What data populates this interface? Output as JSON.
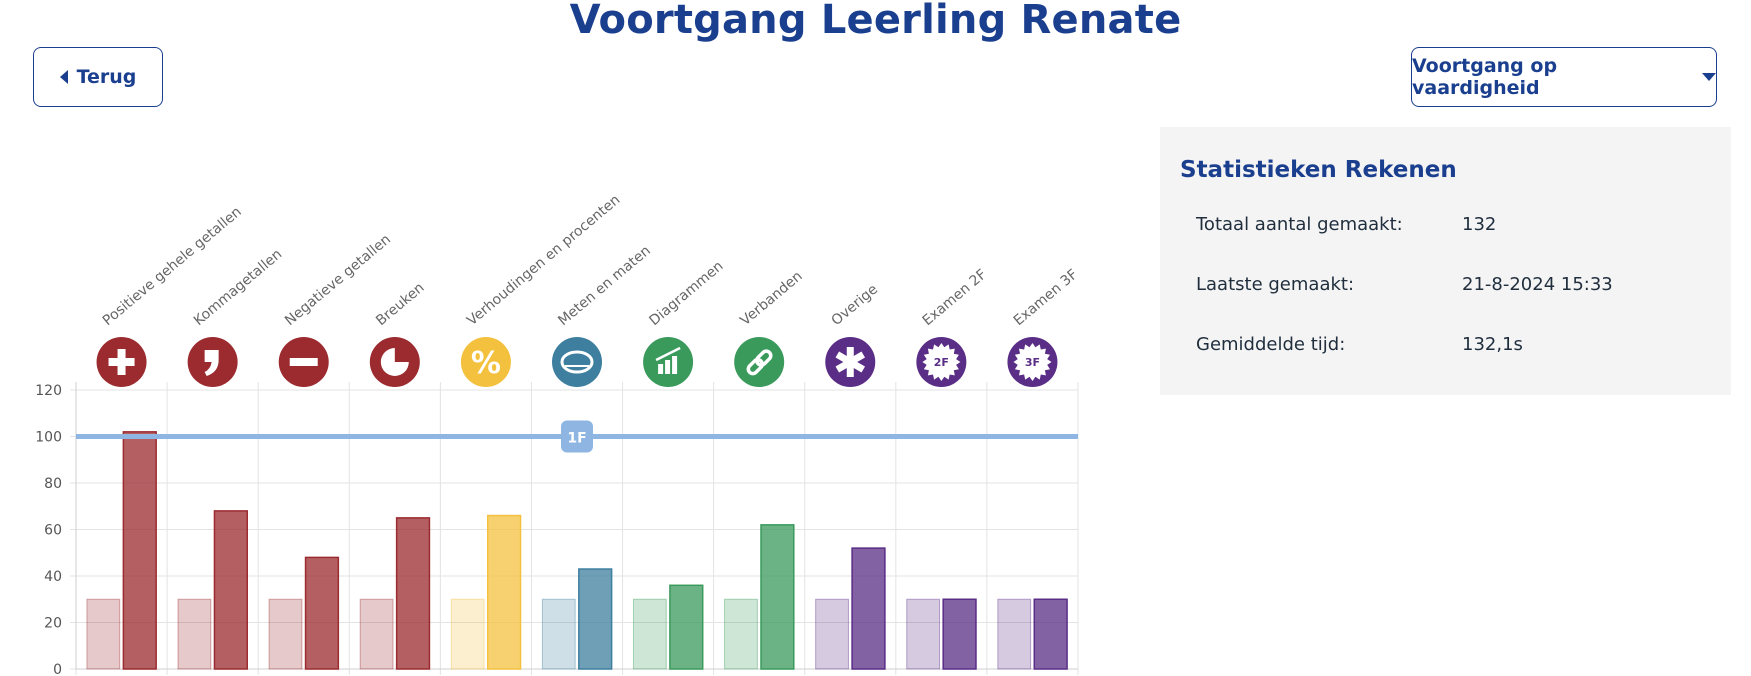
{
  "page": {
    "title": "Voortgang Leerling Renate",
    "back_label": "Terug",
    "view_select_label": "Voortgang op vaardigheid"
  },
  "stats": {
    "title": "Statistieken Rekenen",
    "rows": [
      {
        "label": "Totaal aantal gemaakt:",
        "value": "132"
      },
      {
        "label": "Laatste gemaakt:",
        "value": "21-8-2024 15:33"
      },
      {
        "label": "Gemiddelde tijd:",
        "value": "132,1s"
      }
    ]
  },
  "chart_data": {
    "type": "bar",
    "categories": [
      "Positieve gehele getallen",
      "Kommagetallen",
      "Negatieve getallen",
      "Breuken",
      "Verhoudingen en procenten",
      "Meten en maten",
      "Diagrammen",
      "Verbanden",
      "Overige",
      "Examen 2F",
      "Examen 3F"
    ],
    "series": [
      {
        "values": [
          30,
          30,
          30,
          30,
          30,
          30,
          30,
          30,
          30,
          30,
          30
        ]
      },
      {
        "values": [
          102,
          68,
          48,
          65,
          66,
          43,
          36,
          62,
          52,
          30,
          30
        ]
      }
    ],
    "colors": [
      "#9b2b2f",
      "#9b2b2f",
      "#9b2b2f",
      "#9b2b2f",
      "#f4c13f",
      "#3e7f9f",
      "#3a9a5c",
      "#3a9a5c",
      "#5a2d86",
      "#5a2d86",
      "#5a2d86"
    ],
    "icons": [
      "plus-icon",
      "comma-icon",
      "minus-icon",
      "fraction-icon",
      "percent-icon",
      "tape-measure-icon",
      "bar-chart-icon",
      "link-icon",
      "asterisk-icon",
      "badge-2f-icon",
      "badge-3f-icon"
    ],
    "icon_text": [
      "",
      "",
      "",
      "",
      "%",
      "",
      "",
      "",
      "",
      "2F",
      "3F"
    ],
    "yticks": [
      0,
      20,
      40,
      60,
      80,
      100,
      120
    ],
    "ylim": [
      0,
      120
    ],
    "reference_line": {
      "value": 100,
      "label": "1F",
      "color": "#8fb6e3"
    },
    "grid": true
  }
}
